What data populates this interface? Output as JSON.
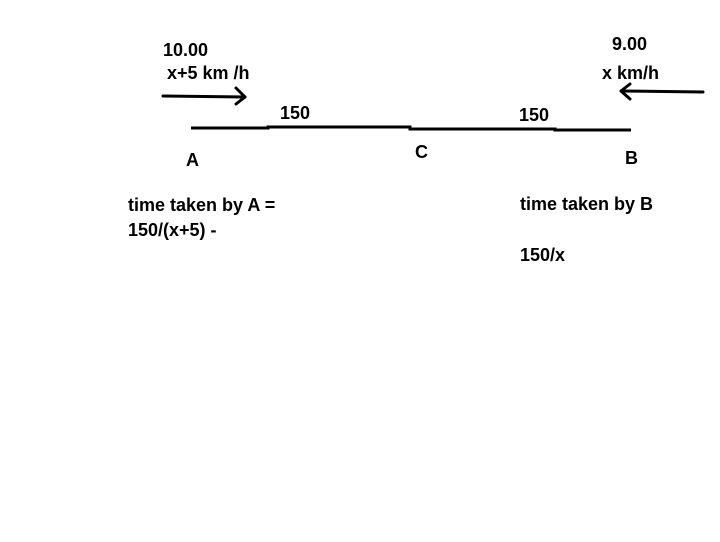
{
  "diagram": {
    "point_a": {
      "label": "A",
      "start_time": "10.00",
      "speed": "x+5 km /h"
    },
    "point_b": {
      "label": "B",
      "start_time": "9.00",
      "speed": "x km/h"
    },
    "point_c": {
      "label": "C"
    },
    "segment_ac": {
      "distance": "150"
    },
    "segment_cb": {
      "distance": "150"
    },
    "notes": {
      "a_line1": "time taken by A =",
      "a_line2": "150/(x+5) -",
      "b_line1": "time taken by B",
      "b_line2": "150/x"
    }
  }
}
